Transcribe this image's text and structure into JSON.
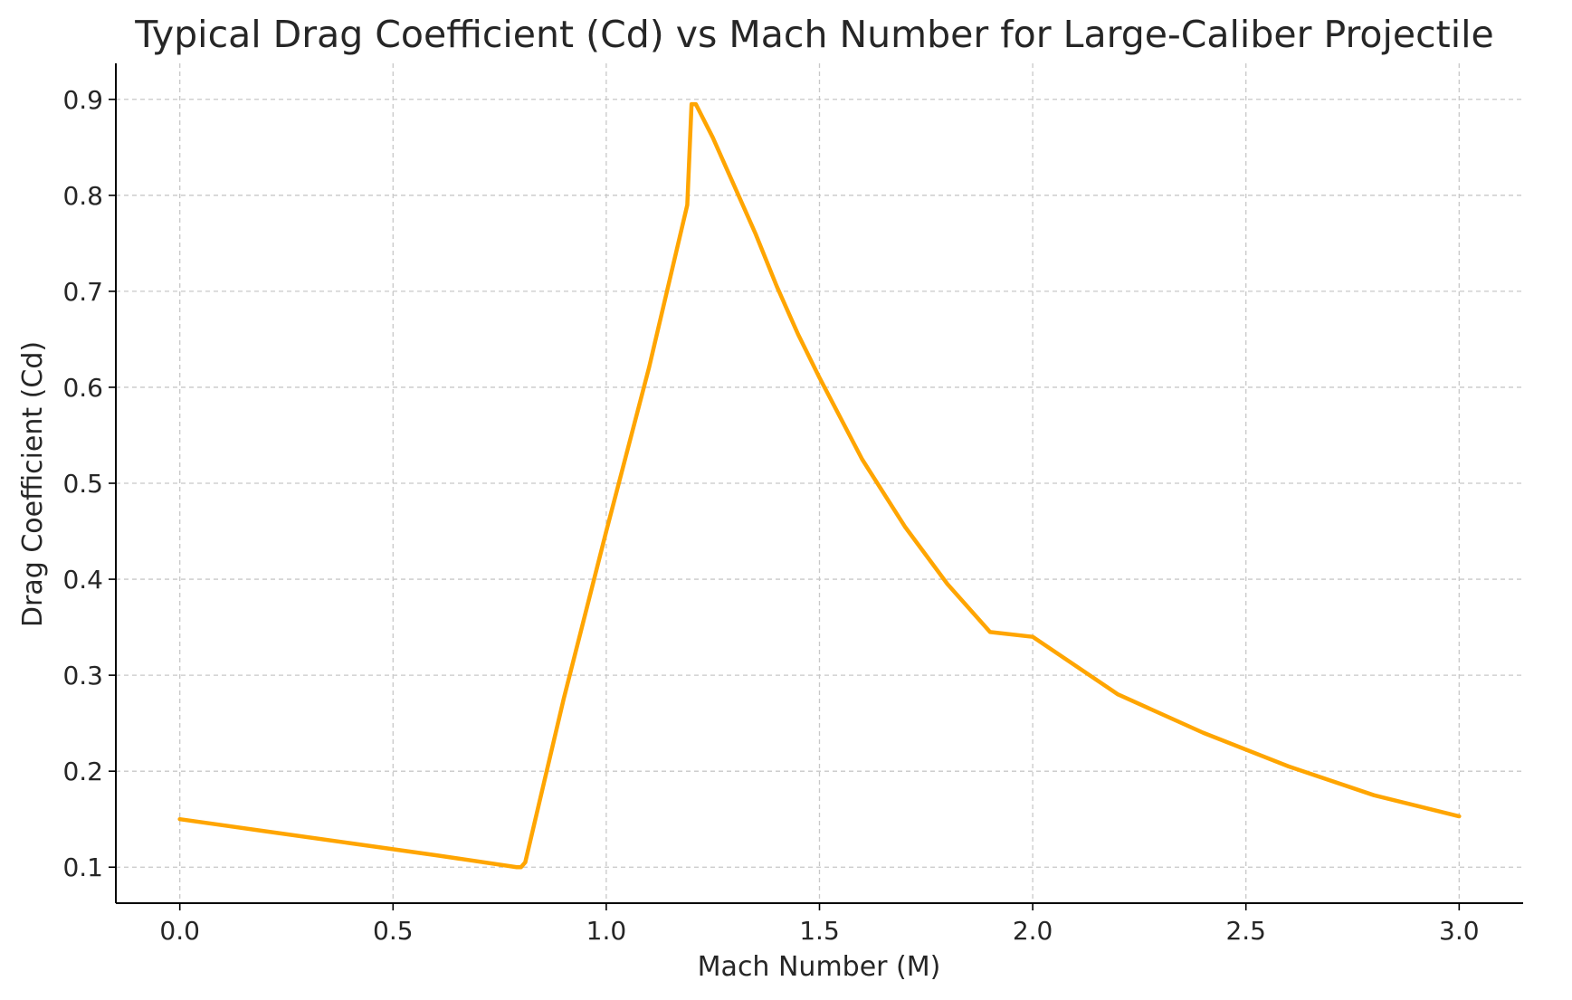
{
  "chart_data": {
    "type": "line",
    "title": "Typical Drag Coefficient (Cd) vs Mach Number for Large-Caliber Projectile",
    "xlabel": "Mach Number (M)",
    "ylabel": "Drag Coefficient (Cd)",
    "xlim": [
      -0.15,
      3.15
    ],
    "ylim": [
      0.0625,
      0.9375
    ],
    "xticks": [
      0.0,
      0.5,
      1.0,
      1.5,
      2.0,
      2.5,
      3.0
    ],
    "xtick_labels": [
      "0.0",
      "0.5",
      "1.0",
      "1.5",
      "2.0",
      "2.5",
      "3.0"
    ],
    "yticks": [
      0.1,
      0.2,
      0.3,
      0.4,
      0.5,
      0.6,
      0.7,
      0.8,
      0.9
    ],
    "ytick_labels": [
      "0.1",
      "0.2",
      "0.3",
      "0.4",
      "0.5",
      "0.6",
      "0.7",
      "0.8",
      "0.9"
    ],
    "grid": true,
    "legend": "none",
    "line_color": "#FFA500",
    "series": [
      {
        "x": [
          0.0,
          0.2,
          0.4,
          0.6,
          0.79,
          0.8,
          0.81,
          0.9,
          1.0,
          1.1,
          1.19,
          1.2,
          1.21,
          1.25,
          1.3,
          1.35,
          1.4,
          1.45,
          1.5,
          1.6,
          1.7,
          1.8,
          1.9,
          2.0,
          2.2,
          2.4,
          2.6,
          2.8,
          3.0
        ],
        "y": [
          0.15,
          0.1375,
          0.125,
          0.1125,
          0.1,
          0.1,
          0.105,
          0.275,
          0.45,
          0.62,
          0.79,
          0.895,
          0.895,
          0.86,
          0.81,
          0.76,
          0.705,
          0.655,
          0.61,
          0.525,
          0.455,
          0.395,
          0.345,
          0.34,
          0.28,
          0.24,
          0.205,
          0.175,
          0.153
        ]
      }
    ]
  }
}
